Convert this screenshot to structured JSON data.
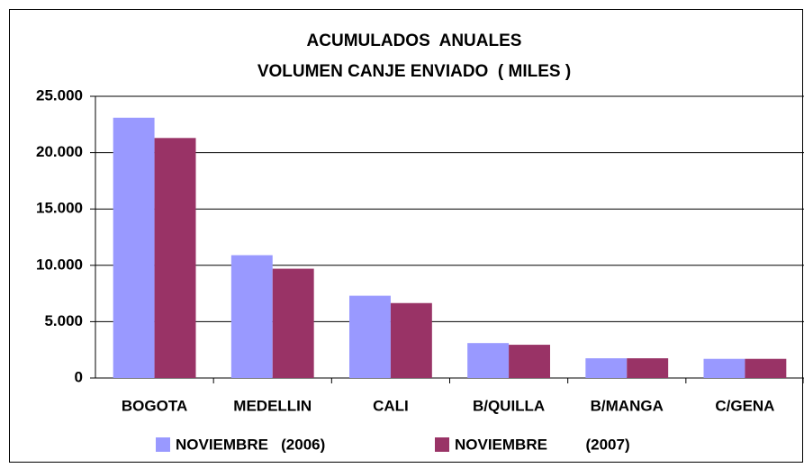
{
  "chart_data": {
    "type": "bar",
    "title": "ACUMULADOS  ANUALES",
    "subtitle": "VOLUMEN CANJE ENVIADO  ( MILES )",
    "categories": [
      "BOGOTA",
      "MEDELLIN",
      "CALI",
      "B/QUILLA",
      "B/MANGA",
      "C/GENA"
    ],
    "series": [
      {
        "name": "NOVIEMBRE   (2006)",
        "color": "#9999ff",
        "values": [
          23100,
          10900,
          7300,
          3100,
          1750,
          1700
        ]
      },
      {
        "name": "NOVIEMBRE         (2007)",
        "color": "#993366",
        "values": [
          21300,
          9700,
          6650,
          2950,
          1750,
          1700
        ]
      }
    ],
    "ylim": [
      0,
      25000
    ],
    "yticks": [
      0,
      {
        "value": 5000,
        "label": "5.000"
      },
      {
        "value": 10000,
        "label": "10.000"
      },
      {
        "value": 15000,
        "label": "15.000"
      },
      {
        "value": 20000,
        "label": "20.000"
      },
      {
        "value": 25000,
        "label": "25.000"
      }
    ],
    "grid": true,
    "legend": "bottom"
  }
}
